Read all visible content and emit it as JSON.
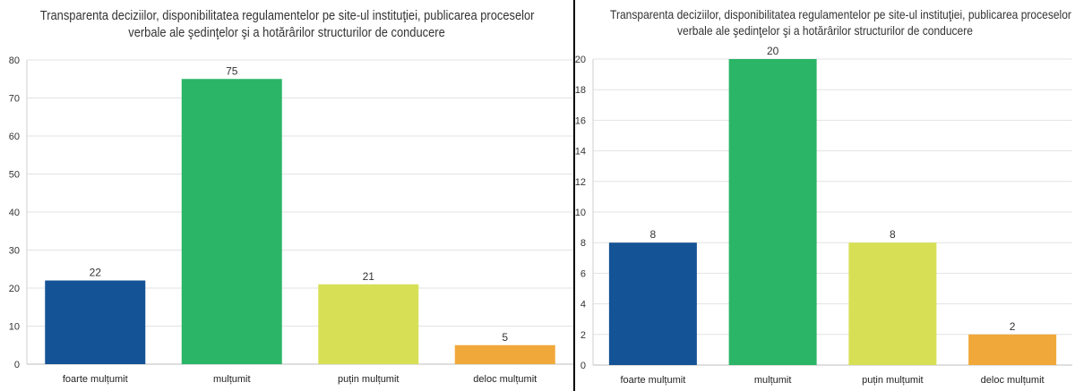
{
  "chart_data": [
    {
      "type": "bar",
      "title_lines": [
        "Transparenta deciziilor, disponibilitatea regulamentelor pe site-ul instituţiei, publicarea proceselor",
        "verbale ale şedinţelor şi a hotărârilor structurilor de conducere"
      ],
      "categories": [
        "foarte mulțumit",
        "mulțumit",
        "puțin mulțumit",
        "deloc mulțumit"
      ],
      "values": [
        22,
        75,
        21,
        5
      ],
      "colors": [
        "#145396",
        "#2bb566",
        "#d7e055",
        "#f1a83a"
      ],
      "ylim": [
        0,
        80
      ],
      "yticks": [
        0,
        10,
        20,
        30,
        40,
        50,
        60,
        70,
        80
      ],
      "grid": true,
      "xlabel": "",
      "ylabel": ""
    },
    {
      "type": "bar",
      "title_lines": [
        "Transparenta deciziilor, disponibilitatea regulamentelor pe site-ul instituţiei, publicarea proceselor",
        "verbale ale şedinţelor şi a hotărârilor structurilor de conducere"
      ],
      "categories": [
        "foarte mulțumit",
        "mulțumit",
        "puțin mulțumit",
        "deloc mulțumit"
      ],
      "values": [
        8,
        20,
        8,
        2
      ],
      "colors": [
        "#145396",
        "#2bb566",
        "#d7e055",
        "#f1a83a"
      ],
      "ylim": [
        0,
        20
      ],
      "yticks": [
        0,
        2,
        4,
        6,
        8,
        10,
        12,
        14,
        16,
        18,
        20
      ],
      "grid": true,
      "xlabel": "",
      "ylabel": ""
    }
  ]
}
